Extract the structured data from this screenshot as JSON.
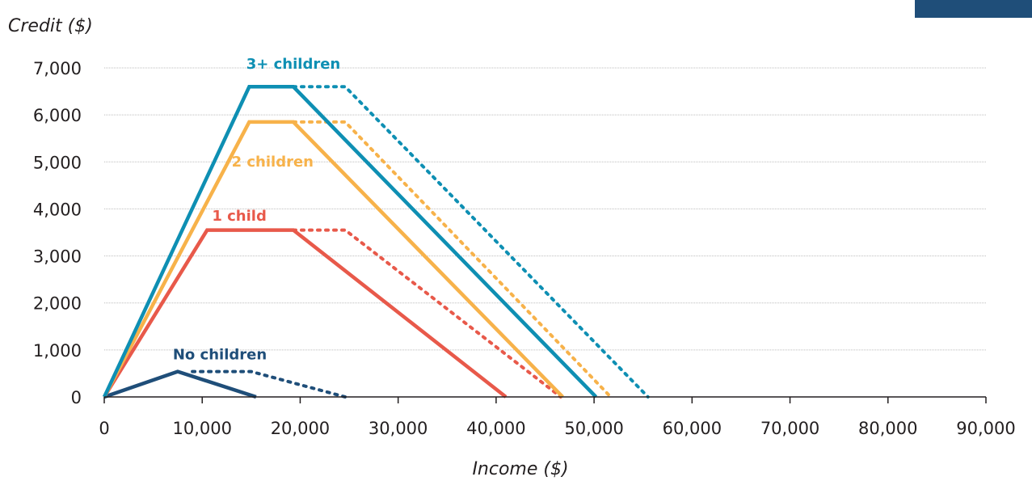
{
  "chart_data": {
    "type": "line",
    "ylabel": "Credit ($)",
    "xlabel": "Income ($)",
    "xlim": [
      0,
      90000
    ],
    "ylim": [
      0,
      7000
    ],
    "x_ticks": [
      0,
      10000,
      20000,
      30000,
      40000,
      50000,
      60000,
      70000,
      80000,
      90000
    ],
    "x_tick_labels": [
      "0",
      "10,000",
      "20,000",
      "30,000",
      "40,000",
      "50,000",
      "60,000",
      "70,000",
      "80,000",
      "90,000"
    ],
    "y_ticks": [
      0,
      1000,
      2000,
      3000,
      4000,
      5000,
      6000,
      7000
    ],
    "y_tick_labels": [
      "0",
      "1,000",
      "2,000",
      "3,000",
      "4,000",
      "5,000",
      "6,000",
      "7,000"
    ],
    "grid": "horizontal",
    "series": [
      {
        "name": "No children",
        "color": "#1f4e79",
        "label_pos": [
          7000,
          800
        ],
        "solid": [
          [
            0,
            0
          ],
          [
            7500,
            540
          ],
          [
            15500,
            0
          ]
        ],
        "dotted": [
          [
            9000,
            540
          ],
          [
            15000,
            540
          ],
          [
            24600,
            0
          ]
        ]
      },
      {
        "name": "1 child",
        "color": "#e8594a",
        "label_pos": [
          11000,
          3750
        ],
        "solid": [
          [
            0,
            0
          ],
          [
            10500,
            3550
          ],
          [
            19300,
            3550
          ],
          [
            41000,
            0
          ]
        ],
        "dotted": [
          [
            19300,
            3550
          ],
          [
            24600,
            3550
          ],
          [
            46600,
            0
          ]
        ]
      },
      {
        "name": "2 children",
        "color": "#f7b24a",
        "label_pos": [
          13000,
          4900
        ],
        "solid": [
          [
            0,
            0
          ],
          [
            14800,
            5850
          ],
          [
            19300,
            5850
          ],
          [
            46800,
            0
          ]
        ],
        "dotted": [
          [
            19300,
            5850
          ],
          [
            24600,
            5850
          ],
          [
            51700,
            0
          ]
        ]
      },
      {
        "name": "3+ children",
        "color": "#0e8fb3",
        "label_pos": [
          14500,
          6980
        ],
        "solid": [
          [
            0,
            0
          ],
          [
            14800,
            6600
          ],
          [
            19300,
            6600
          ],
          [
            50200,
            0
          ]
        ],
        "dotted": [
          [
            19300,
            6600
          ],
          [
            24600,
            6600
          ],
          [
            55500,
            0
          ]
        ]
      }
    ]
  }
}
